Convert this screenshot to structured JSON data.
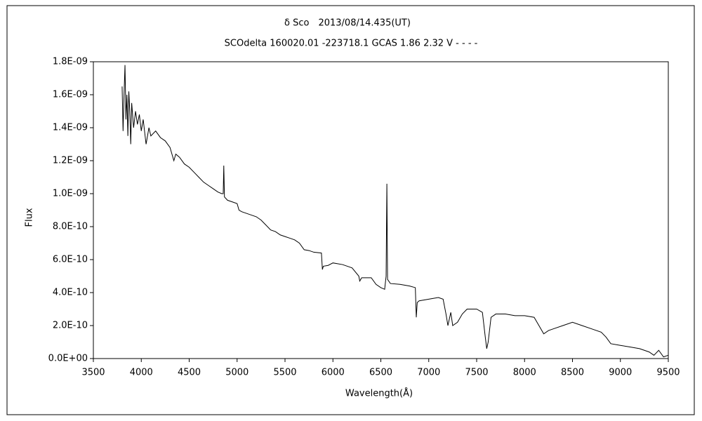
{
  "chart_data": {
    "type": "line",
    "title": "δ Sco　2013/08/14.435(UT)",
    "subtitle": "SCOdelta 160020.01 -223718.1 GCAS 1.86 2.32 V - - - -",
    "x_label": "Wavelength(Å)",
    "y_label": "Flux",
    "color": "#000000",
    "xlim": [
      3500,
      9500
    ],
    "xticks": [
      3500,
      4000,
      4500,
      5000,
      5500,
      6000,
      6500,
      7000,
      7500,
      8000,
      8500,
      9000,
      9500
    ],
    "ylim": [
      0,
      1.8e-09
    ],
    "yticks": [
      {
        "value": 0,
        "label": "0.0E+00"
      },
      {
        "value": 2e-10,
        "label": "2.0E-10"
      },
      {
        "value": 4e-10,
        "label": "4.0E-10"
      },
      {
        "value": 6e-10,
        "label": "6.0E-10"
      },
      {
        "value": 8e-10,
        "label": "8.0E-10"
      },
      {
        "value": 1e-09,
        "label": "1.0E-09"
      },
      {
        "value": 1.2e-09,
        "label": "1.2E-09"
      },
      {
        "value": 1.4e-09,
        "label": "1.4E-09"
      },
      {
        "value": 1.6e-09,
        "label": "1.6E-09"
      },
      {
        "value": 1.8e-09,
        "label": "1.8E-09"
      }
    ],
    "x": [
      3800,
      3810,
      3820,
      3830,
      3840,
      3850,
      3860,
      3870,
      3880,
      3890,
      3900,
      3920,
      3940,
      3960,
      3980,
      4000,
      4020,
      4050,
      4080,
      4100,
      4150,
      4200,
      4250,
      4300,
      4340,
      4360,
      4400,
      4450,
      4500,
      4550,
      4600,
      4650,
      4700,
      4750,
      4800,
      4840,
      4855,
      4861,
      4868,
      4900,
      4950,
      5000,
      5020,
      5050,
      5100,
      5150,
      5200,
      5250,
      5300,
      5350,
      5400,
      5450,
      5500,
      5550,
      5600,
      5650,
      5700,
      5750,
      5800,
      5880,
      5890,
      5900,
      5950,
      6000,
      6100,
      6200,
      6270,
      6280,
      6300,
      6400,
      6450,
      6500,
      6540,
      6555,
      6563,
      6570,
      6600,
      6700,
      6800,
      6860,
      6870,
      6880,
      6900,
      7000,
      7100,
      7150,
      7180,
      7200,
      7230,
      7250,
      7300,
      7350,
      7400,
      7500,
      7560,
      7590,
      7605,
      7620,
      7650,
      7700,
      7800,
      7900,
      8000,
      8100,
      8150,
      8200,
      8250,
      8300,
      8400,
      8500,
      8600,
      8700,
      8800,
      8850,
      8900,
      9000,
      9100,
      9200,
      9300,
      9350,
      9400,
      9450,
      9500
    ],
    "values": [
      1.65e-09,
      1.38e-09,
      1.6e-09,
      1.78e-09,
      1.45e-09,
      1.6e-09,
      1.35e-09,
      1.62e-09,
      1.5e-09,
      1.3e-09,
      1.55e-09,
      1.4e-09,
      1.5e-09,
      1.42e-09,
      1.48e-09,
      1.38e-09,
      1.45e-09,
      1.3e-09,
      1.4e-09,
      1.35e-09,
      1.38e-09,
      1.34e-09,
      1.32e-09,
      1.28e-09,
      1.2e-09,
      1.24e-09,
      1.22e-09,
      1.18e-09,
      1.16e-09,
      1.13e-09,
      1.1e-09,
      1.07e-09,
      1.05e-09,
      1.03e-09,
      1.01e-09,
      1e-09,
      1e-09,
      1.17e-09,
      9.8e-10,
      9.6e-10,
      9.5e-10,
      9.4e-10,
      9e-10,
      8.9e-10,
      8.8e-10,
      8.7e-10,
      8.6e-10,
      8.4e-10,
      8.1e-10,
      7.8e-10,
      7.7e-10,
      7.5e-10,
      7.4e-10,
      7.3e-10,
      7.2e-10,
      7e-10,
      6.6e-10,
      6.55e-10,
      6.45e-10,
      6.4e-10,
      5.4e-10,
      5.6e-10,
      5.65e-10,
      5.8e-10,
      5.7e-10,
      5.5e-10,
      5e-10,
      4.7e-10,
      4.9e-10,
      4.9e-10,
      4.5e-10,
      4.3e-10,
      4.2e-10,
      5e-10,
      1.06e-09,
      4.8e-10,
      4.55e-10,
      4.5e-10,
      4.4e-10,
      4.3e-10,
      2.5e-10,
      3.4e-10,
      3.5e-10,
      3.6e-10,
      3.7e-10,
      3.6e-10,
      2.7e-10,
      2e-10,
      2.8e-10,
      2e-10,
      2.2e-10,
      2.7e-10,
      3e-10,
      3e-10,
      2.8e-10,
      1.3e-10,
      6e-11,
      1e-10,
      2.5e-10,
      2.7e-10,
      2.7e-10,
      2.6e-10,
      2.6e-10,
      2.5e-10,
      2e-10,
      1.5e-10,
      1.7e-10,
      1.8e-10,
      2e-10,
      2.2e-10,
      2e-10,
      1.8e-10,
      1.6e-10,
      1.3e-10,
      9e-11,
      8e-11,
      7e-11,
      6e-11,
      4e-11,
      2e-11,
      5e-11,
      1e-11,
      2e-11
    ]
  }
}
